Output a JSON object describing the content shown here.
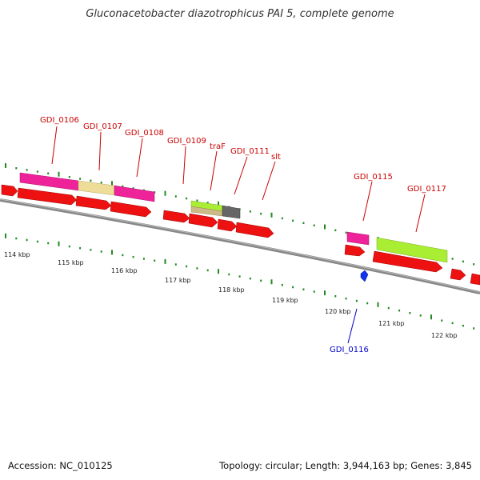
{
  "title": "Gluconacetobacter diazotrophicus PAI 5, complete genome",
  "footer": {
    "accession": "Accession: NC_010125",
    "summary": "Topology: circular; Length: 3,944,163 bp; Genes: 3,845"
  },
  "colors": {
    "backbone": "#8a8a8a",
    "cds_red": "#ee1111",
    "magenta": "#ee2299",
    "beige": "#eedd99",
    "lime": "#aaee33",
    "tan": "#ccbb88",
    "dark": "#666666",
    "green_tick": "#228822",
    "label_red": "#cc0000",
    "label_blue": "#0000cc"
  },
  "axis_labels": [
    "114 kbp",
    "115 kbp",
    "116 kbp",
    "117 kbp",
    "118 kbp",
    "119 kbp",
    "120 kbp",
    "121 kbp",
    "122 kbp"
  ],
  "gene_labels": [
    {
      "name": "GDI_0106",
      "color": "red"
    },
    {
      "name": "GDI_0107",
      "color": "red"
    },
    {
      "name": "GDI_0108",
      "color": "red"
    },
    {
      "name": "GDI_0109",
      "color": "red"
    },
    {
      "name": "traF",
      "color": "red"
    },
    {
      "name": "GDI_0111",
      "color": "red"
    },
    {
      "name": "slt",
      "color": "red"
    },
    {
      "name": "GDI_0115",
      "color": "red"
    },
    {
      "name": "GDI_0117",
      "color": "red"
    },
    {
      "name": "GDI_0116",
      "color": "blue"
    }
  ]
}
